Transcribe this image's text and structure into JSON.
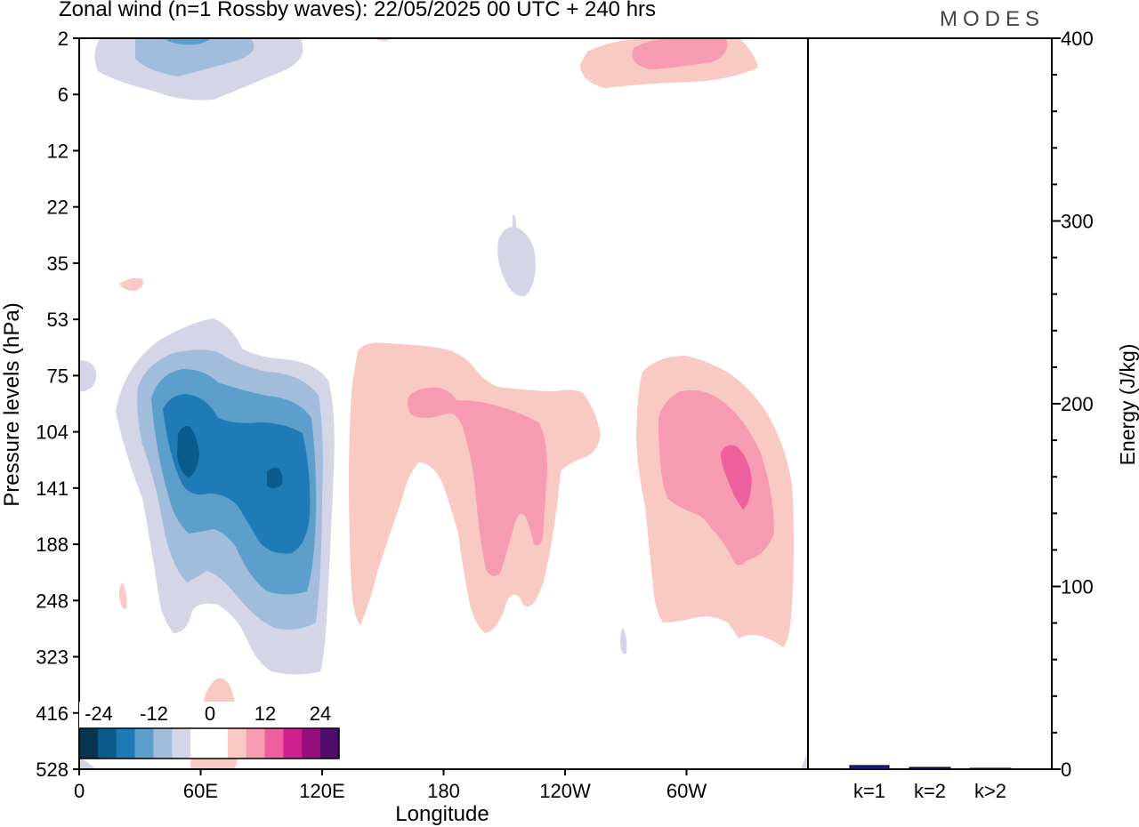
{
  "header": {
    "title": "Zonal wind (n=1 Rossby waves):  22/05/2025  00 UTC  + 240 hrs",
    "logo": "MODES"
  },
  "chart_data": [
    {
      "type": "heatmap",
      "title": "Zonal wind (n=1 Rossby waves):  22/05/2025  00 UTC  + 240 hrs",
      "xlabel": "Longitude",
      "ylabel": "Pressure levels (hPa)",
      "x_ticks": [
        "0",
        "60E",
        "120E",
        "180",
        "120W",
        "60W"
      ],
      "x_tick_lon": [
        0,
        60,
        120,
        180,
        240,
        300
      ],
      "xlim": [
        0,
        360
      ],
      "y_ticks": [
        "2",
        "6",
        "12",
        "22",
        "35",
        "53",
        "75",
        "104",
        "141",
        "188",
        "248",
        "323",
        "416",
        "528"
      ],
      "y_order": "top-to-bottom",
      "colorbar": {
        "labels": [
          "-24",
          "-12",
          "0",
          "12",
          "24"
        ],
        "colors": [
          "#08344f",
          "#0a5b8c",
          "#1f7ab5",
          "#5d9fcb",
          "#a2bcdc",
          "#d4d6e8",
          "#ffffff",
          "#ffffff",
          "#f9c9c3",
          "#f79bb2",
          "#ee5f9e",
          "#cf2090",
          "#960d7c",
          "#4e0b6c"
        ]
      },
      "contours": [
        {
          "name": "east-anomaly-top",
          "lon": 30,
          "level": "6",
          "sign": "negative",
          "peak": -18
        },
        {
          "name": "west-anomaly-top",
          "lon": 280,
          "level": "2",
          "sign": "positive",
          "peak": 12
        },
        {
          "name": "negative-core",
          "lon": 55,
          "level": "104",
          "sign": "negative",
          "peak": -24
        },
        {
          "name": "negative-core-2",
          "lon": 97,
          "level": "141",
          "sign": "negative",
          "peak": -24
        },
        {
          "name": "positive-central",
          "lon": 205,
          "level": "141",
          "sign": "positive",
          "peak": 12
        },
        {
          "name": "positive-west-core",
          "lon": 325,
          "level": "141",
          "sign": "positive",
          "peak": 18
        }
      ]
    },
    {
      "type": "bar",
      "categories": [
        "k=1",
        "k=2",
        "k>2"
      ],
      "values": [
        2,
        1,
        0.5
      ],
      "ylabel": "Energy (J/kg)",
      "ylim": [
        0,
        400
      ],
      "y_ticks": [
        "0",
        "100",
        "200",
        "300",
        "400"
      ],
      "colors": [
        "#1a1aa0",
        "#15158a",
        "#101070"
      ]
    }
  ]
}
